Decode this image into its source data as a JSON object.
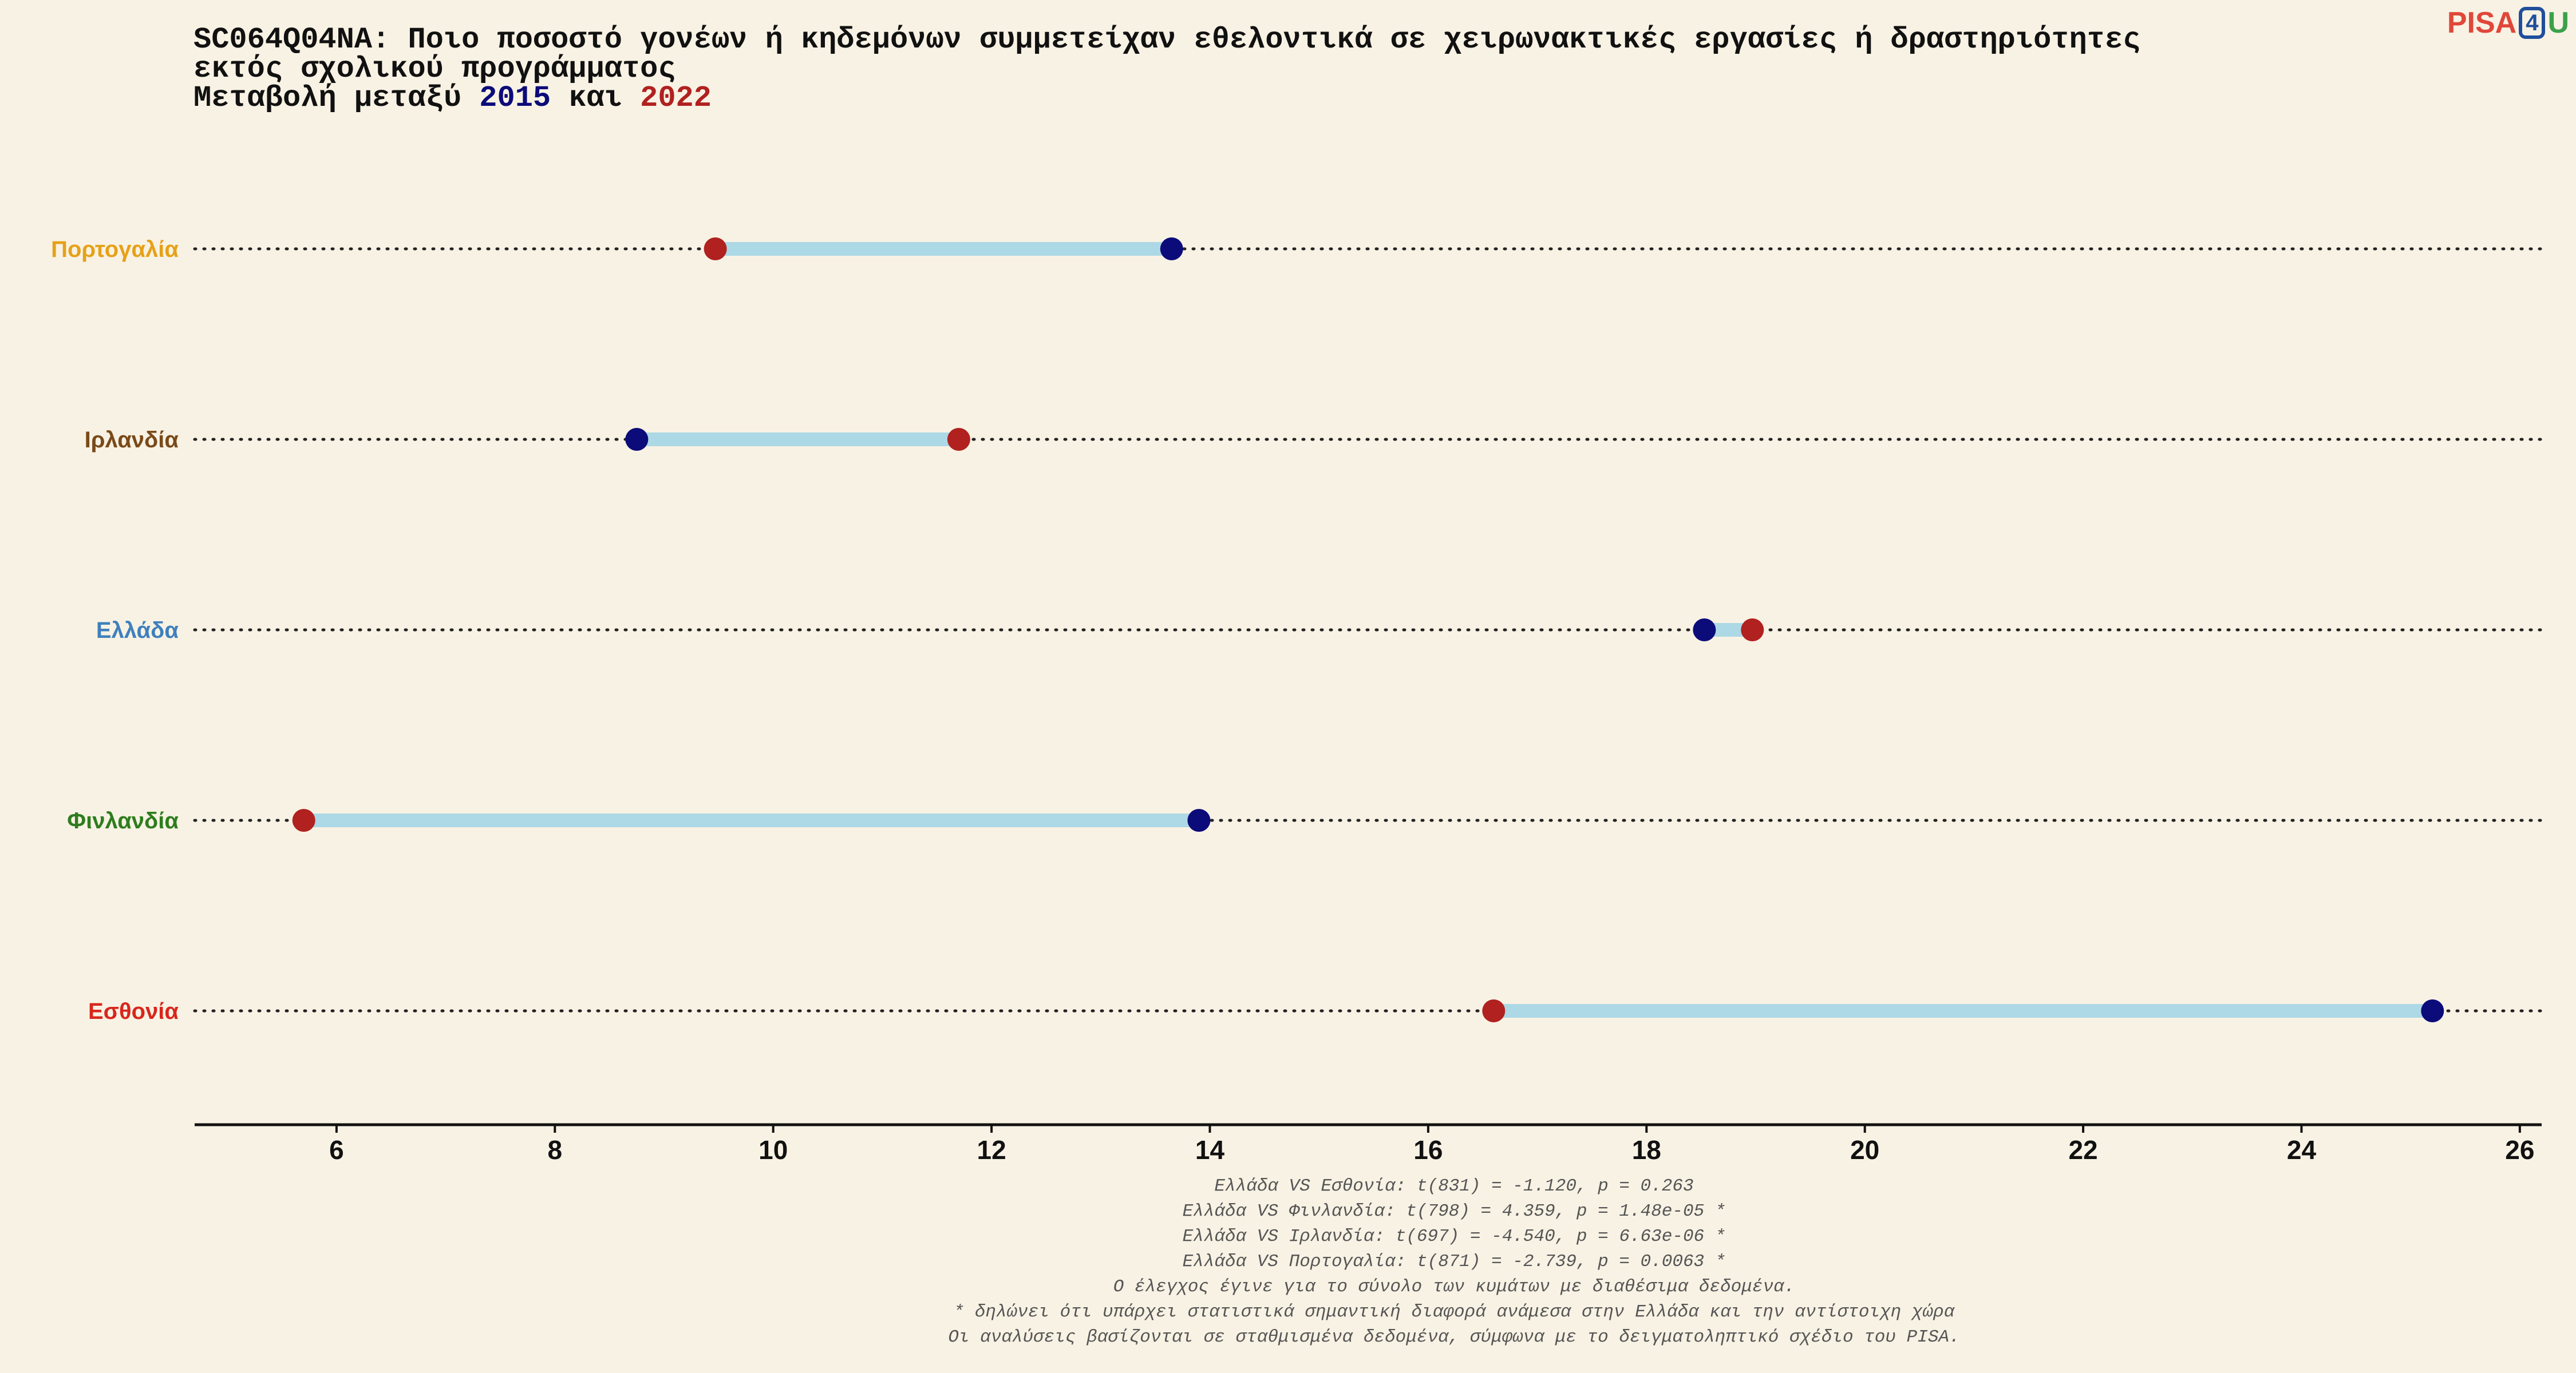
{
  "title": {
    "line1": "SC064Q04NA: Ποιο ποσοστό γονέων ή κηδεμόνων συμμετείχαν εθελοντικά σε χειρωνακτικές εργασίες ή δραστηριότητες",
    "line2": "εκτός σχολικού προγράμματος",
    "line3_prefix": "Μεταβολή μεταξύ ",
    "year_a": "2015",
    "line3_mid": " και ",
    "year_b": "2022"
  },
  "logo": {
    "part1": "PISA",
    "part2": "4",
    "part3": "U"
  },
  "colors": {
    "background": "#f8f2e4",
    "year_2015": "#0b0b7a",
    "year_2022": "#b0211f",
    "segment": "#add8e6"
  },
  "chart_data": {
    "type": "dumbbell",
    "xlim": [
      4.7,
      26.2
    ],
    "xticks": [
      6,
      8,
      10,
      12,
      14,
      16,
      18,
      20,
      22,
      24,
      26
    ],
    "series": [
      {
        "name": "2015",
        "color": "#0b0b7a"
      },
      {
        "name": "2022",
        "color": "#b0211f"
      }
    ],
    "categories": [
      {
        "label": "Πορτογαλία",
        "color": "#e6a117",
        "v2015": 13.65,
        "v2022": 9.47
      },
      {
        "label": "Ιρλανδία",
        "color": "#7a4a19",
        "v2015": 8.75,
        "v2022": 11.7
      },
      {
        "label": "Ελλάδα",
        "color": "#3f80bd",
        "v2015": 18.53,
        "v2022": 18.97
      },
      {
        "label": "Φινλανδία",
        "color": "#2e7d1e",
        "v2015": 13.9,
        "v2022": 5.7
      },
      {
        "label": "Εσθονία",
        "color": "#d9261c",
        "v2015": 25.2,
        "v2022": 16.6
      }
    ]
  },
  "notes": [
    "Ελλάδα VS Εσθονία: t(831) = -1.120, p = 0.263",
    "Ελλάδα VS Φινλανδία: t(798) = 4.359, p = 1.48e-05 *",
    "Ελλάδα VS Ιρλανδία: t(697) = -4.540, p = 6.63e-06 *",
    "Ελλάδα VS Πορτογαλία: t(871) = -2.739, p = 0.0063 *",
    "Ο έλεγχος έγινε για το σύνολο των κυμάτων με διαθέσιμα δεδομένα.",
    "* δηλώνει ότι υπάρχει στατιστικά σημαντική διαφορά ανάμεσα στην Ελλάδα και την αντίστοιχη χώρα",
    "Οι αναλύσεις βασίζονται σε σταθμισμένα δεδομένα, σύμφωνα με το δειγματοληπτικό σχέδιο του PISA."
  ]
}
